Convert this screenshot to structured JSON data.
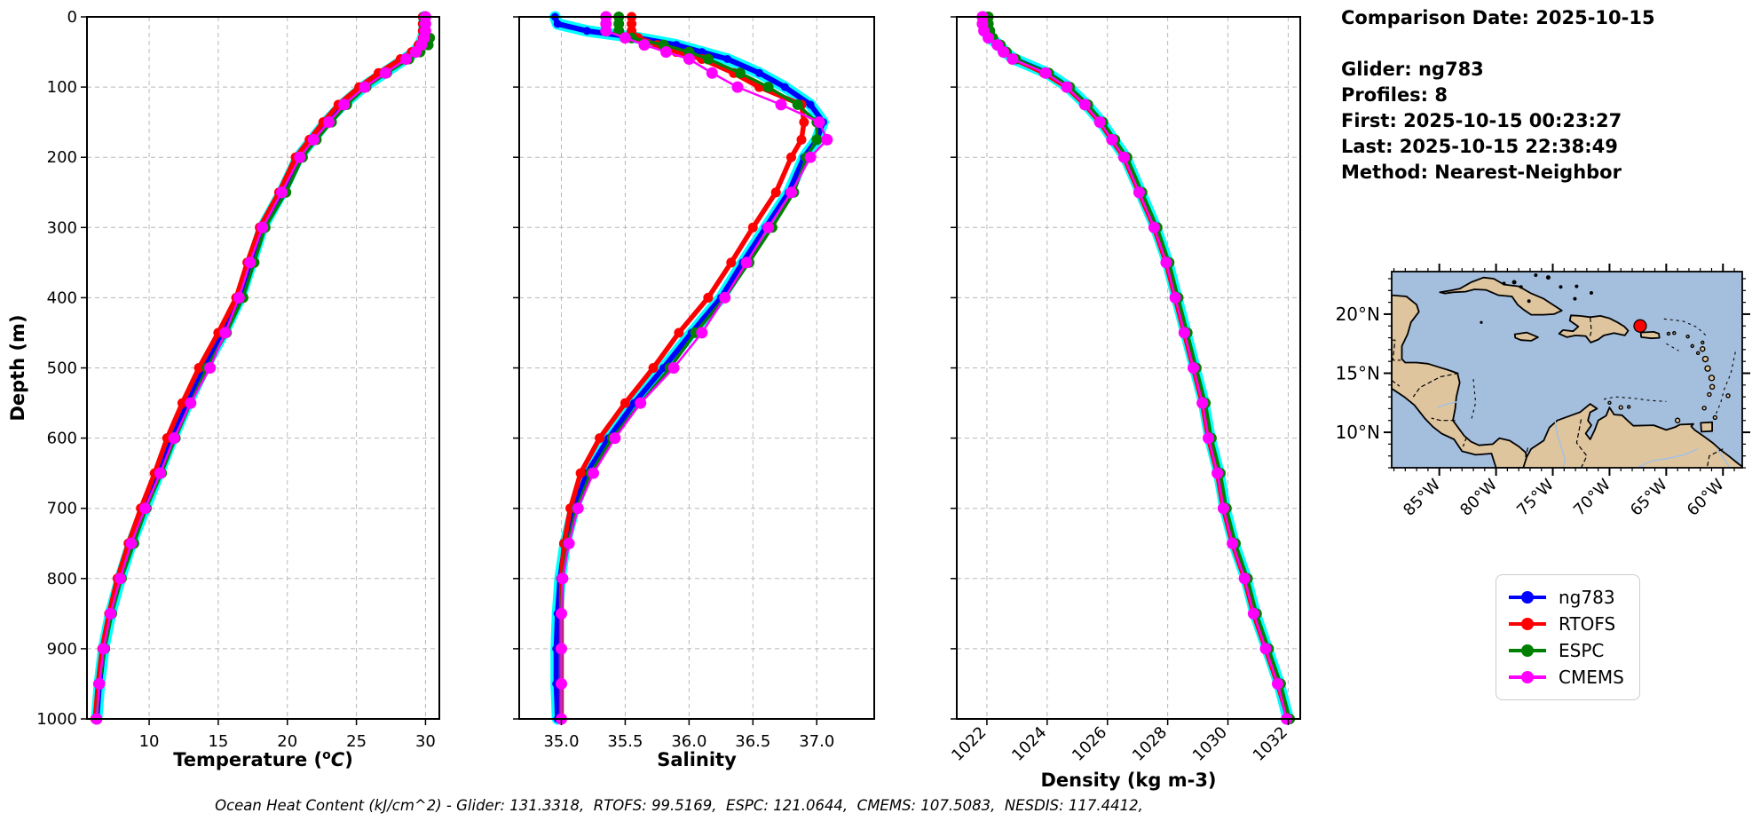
{
  "info_panel": {
    "comparison_date": "Comparison Date: 2025-10-15",
    "lines": [
      "Glider: ng783",
      "Profiles: 8",
      "First: 2025-10-15 00:23:27",
      "Last: 2025-10-15 22:38:49",
      "Method: Nearest-Neighbor"
    ]
  },
  "footer": "Ocean Heat Content (kJ/cm^2) - Glider: 131.3318,  RTOFS: 99.5169,  ESPC: 121.0644,  CMEMS: 107.5083,  NESDIS: 117.4412,",
  "legend": {
    "items": [
      {
        "label": "ng783",
        "color": "#0000ff"
      },
      {
        "label": "RTOFS",
        "color": "#ff0000"
      },
      {
        "label": "ESPC",
        "color": "#008000"
      },
      {
        "label": "CMEMS",
        "color": "#ff00ff"
      }
    ]
  },
  "colors": {
    "glider_envelope": "#00ffff",
    "ng783": "#0000ff",
    "RTOFS": "#ff0000",
    "ESPC": "#008000",
    "CMEMS": "#ff00ff",
    "grid": "#b8b8b8",
    "map_land": "#dfc59e",
    "map_ocean": "#a4bedd",
    "map_river": "#9fc0e8",
    "glider_marker": "#ff0000"
  },
  "chart_data": [
    {
      "id": "temperature",
      "type": "line",
      "xlabel_parts": {
        "prefix": "Temperature (",
        "sup": "o",
        "mathvar": "C",
        "suffix": ")"
      },
      "ylabel": "Depth (m)",
      "xlim": [
        5.5,
        31.0
      ],
      "xticks": [
        10,
        15,
        20,
        25,
        30
      ],
      "xtick_labels": [
        "10",
        "15",
        "20",
        "25",
        "30"
      ],
      "ylim": [
        0,
        1000
      ],
      "yticks": [
        0,
        100,
        200,
        300,
        400,
        500,
        600,
        700,
        800,
        900,
        1000
      ],
      "ytick_labels": [
        "0",
        "100",
        "200",
        "300",
        "400",
        "500",
        "600",
        "700",
        "800",
        "900",
        "1000"
      ],
      "grid": true,
      "depths": [
        0,
        10,
        20,
        30,
        40,
        50,
        60,
        80,
        100,
        125,
        150,
        175,
        200,
        250,
        300,
        350,
        400,
        450,
        500,
        550,
        600,
        650,
        700,
        750,
        800,
        850,
        900,
        950,
        1000
      ],
      "series": [
        {
          "name": "ng783",
          "values": [
            29.9,
            29.9,
            29.9,
            29.8,
            29.6,
            29.2,
            28.5,
            27.0,
            25.5,
            24.0,
            22.8,
            21.8,
            20.8,
            19.6,
            18.2,
            17.4,
            16.6,
            15.4,
            14.0,
            12.8,
            11.7,
            10.7,
            9.7,
            8.7,
            7.9,
            7.2,
            6.7,
            6.4,
            6.2
          ]
        },
        {
          "name": "RTOFS",
          "values": [
            29.8,
            29.8,
            29.8,
            29.8,
            29.5,
            29.0,
            28.2,
            26.6,
            25.2,
            23.7,
            22.6,
            21.6,
            20.6,
            19.4,
            18.0,
            17.1,
            16.3,
            15.0,
            13.6,
            12.4,
            11.3,
            10.4,
            9.4,
            8.5,
            7.7,
            7.1,
            6.6,
            6.3,
            6.1
          ]
        },
        {
          "name": "ESPC",
          "values": [
            29.9,
            29.9,
            30.0,
            30.3,
            30.2,
            29.6,
            28.8,
            27.2,
            25.7,
            24.3,
            23.2,
            22.1,
            21.1,
            19.9,
            18.4,
            17.6,
            16.8,
            15.6,
            14.2,
            13.0,
            11.9,
            10.9,
            9.8,
            8.9,
            8.0,
            7.3,
            6.8,
            6.4,
            6.2
          ]
        },
        {
          "name": "CMEMS",
          "values": [
            30.0,
            30.0,
            30.0,
            29.9,
            29.7,
            29.3,
            28.6,
            27.1,
            25.6,
            24.1,
            23.0,
            21.9,
            20.9,
            19.6,
            18.2,
            17.3,
            16.5,
            15.5,
            14.4,
            13.0,
            11.8,
            10.8,
            9.7,
            8.7,
            7.9,
            7.2,
            6.7,
            6.4,
            6.2
          ]
        }
      ]
    },
    {
      "id": "salinity",
      "type": "line",
      "xlabel": "Salinity",
      "xlim": [
        34.67,
        37.45
      ],
      "xticks": [
        35.0,
        35.5,
        36.0,
        36.5,
        37.0
      ],
      "xtick_labels": [
        "35.0",
        "35.5",
        "36.0",
        "36.5",
        "37.0"
      ],
      "ylim": [
        0,
        1000
      ],
      "yticks": [
        0,
        100,
        200,
        300,
        400,
        500,
        600,
        700,
        800,
        900,
        1000
      ],
      "grid": true,
      "depths": [
        0,
        10,
        20,
        30,
        40,
        50,
        60,
        80,
        100,
        125,
        150,
        175,
        200,
        250,
        300,
        350,
        400,
        450,
        500,
        550,
        600,
        650,
        700,
        750,
        800,
        850,
        900,
        950,
        1000
      ],
      "series": [
        {
          "name": "ng783",
          "values": [
            34.95,
            34.97,
            35.2,
            35.6,
            35.9,
            36.1,
            36.3,
            36.55,
            36.75,
            36.95,
            37.05,
            37.0,
            36.9,
            36.78,
            36.6,
            36.42,
            36.25,
            36.02,
            35.8,
            35.57,
            35.37,
            35.2,
            35.1,
            35.03,
            34.99,
            34.97,
            34.96,
            34.96,
            34.97
          ]
        },
        {
          "name": "RTOFS",
          "values": [
            35.55,
            35.55,
            35.55,
            35.6,
            35.75,
            35.9,
            36.1,
            36.35,
            36.55,
            36.88,
            36.9,
            36.88,
            36.8,
            36.68,
            36.5,
            36.33,
            36.15,
            35.92,
            35.72,
            35.5,
            35.3,
            35.15,
            35.07,
            35.02,
            35.0,
            35.0,
            35.0,
            35.0,
            35.0
          ]
        },
        {
          "name": "ESPC",
          "values": [
            35.45,
            35.45,
            35.45,
            35.55,
            35.8,
            36.0,
            36.15,
            36.4,
            36.62,
            36.85,
            37.0,
            37.0,
            36.92,
            36.82,
            36.65,
            36.47,
            36.28,
            36.05,
            35.85,
            35.62,
            35.4,
            35.23,
            35.12,
            35.05,
            35.01,
            35.0,
            35.0,
            35.0,
            35.0
          ]
        },
        {
          "name": "CMEMS",
          "values": [
            35.35,
            35.35,
            35.35,
            35.5,
            35.65,
            35.82,
            36.0,
            36.18,
            36.38,
            36.72,
            37.02,
            37.08,
            36.95,
            36.8,
            36.62,
            36.45,
            36.28,
            36.1,
            35.88,
            35.62,
            35.42,
            35.25,
            35.13,
            35.06,
            35.01,
            35.0,
            35.0,
            35.0,
            35.0
          ]
        }
      ]
    },
    {
      "id": "density",
      "type": "line",
      "xlabel": "Density (kg m-3)",
      "xlim": [
        1021.0,
        1032.4
      ],
      "xticks": [
        1022,
        1024,
        1026,
        1028,
        1030,
        1032
      ],
      "xtick_labels": [
        "1022",
        "1024",
        "1026",
        "1028",
        "1030",
        "1032"
      ],
      "xtick_rotation": 45,
      "ylim": [
        0,
        1000
      ],
      "yticks": [
        0,
        100,
        200,
        300,
        400,
        500,
        600,
        700,
        800,
        900,
        1000
      ],
      "grid": true,
      "depths": [
        0,
        10,
        20,
        30,
        40,
        50,
        60,
        80,
        100,
        125,
        150,
        175,
        200,
        250,
        300,
        350,
        400,
        450,
        500,
        550,
        600,
        650,
        700,
        750,
        800,
        850,
        900,
        950,
        1000
      ],
      "series": [
        {
          "name": "ng783",
          "values": [
            1021.9,
            1021.9,
            1021.95,
            1022.1,
            1022.4,
            1022.6,
            1022.9,
            1024.0,
            1024.7,
            1025.3,
            1025.8,
            1026.2,
            1026.6,
            1027.1,
            1027.6,
            1028.0,
            1028.3,
            1028.6,
            1028.9,
            1029.2,
            1029.4,
            1029.7,
            1029.9,
            1030.2,
            1030.6,
            1030.9,
            1031.3,
            1031.7,
            1032.0
          ]
        },
        {
          "name": "RTOFS",
          "values": [
            1022.0,
            1022.0,
            1022.0,
            1022.1,
            1022.35,
            1022.6,
            1022.9,
            1023.9,
            1024.65,
            1025.25,
            1025.75,
            1026.15,
            1026.55,
            1027.05,
            1027.55,
            1027.95,
            1028.25,
            1028.55,
            1028.85,
            1029.15,
            1029.35,
            1029.65,
            1029.85,
            1030.15,
            1030.55,
            1030.85,
            1031.25,
            1031.65,
            1032.0
          ]
        },
        {
          "name": "ESPC",
          "values": [
            1022.05,
            1022.05,
            1022.1,
            1022.2,
            1022.45,
            1022.65,
            1022.95,
            1024.05,
            1024.75,
            1025.35,
            1025.85,
            1026.25,
            1026.65,
            1027.15,
            1027.65,
            1028.05,
            1028.35,
            1028.65,
            1028.95,
            1029.25,
            1029.45,
            1029.75,
            1029.95,
            1030.25,
            1030.65,
            1030.95,
            1031.35,
            1031.75,
            1032.05
          ]
        },
        {
          "name": "CMEMS",
          "values": [
            1021.85,
            1021.85,
            1021.9,
            1022.05,
            1022.35,
            1022.55,
            1022.85,
            1023.95,
            1024.65,
            1025.25,
            1025.75,
            1026.15,
            1026.55,
            1027.05,
            1027.55,
            1027.95,
            1028.25,
            1028.55,
            1028.85,
            1029.15,
            1029.35,
            1029.65,
            1029.85,
            1030.15,
            1030.55,
            1030.85,
            1031.25,
            1031.65,
            1031.95
          ]
        }
      ]
    },
    {
      "id": "location-map",
      "type": "map",
      "extent": {
        "lon": [
          -89.2,
          -58.3
        ],
        "lat": [
          7.0,
          23.6
        ]
      },
      "lon_ticks": [
        -85,
        -80,
        -75,
        -70,
        -65,
        -60
      ],
      "lon_tick_labels": [
        "85°W",
        "80°W",
        "75°W",
        "70°W",
        "65°W",
        "60°W"
      ],
      "lat_ticks": [
        10,
        15,
        20
      ],
      "lat_tick_labels": [
        "10°N",
        "15°N",
        "20°N"
      ],
      "glider_location": {
        "lon": -67.3,
        "lat": 19.0
      }
    }
  ]
}
